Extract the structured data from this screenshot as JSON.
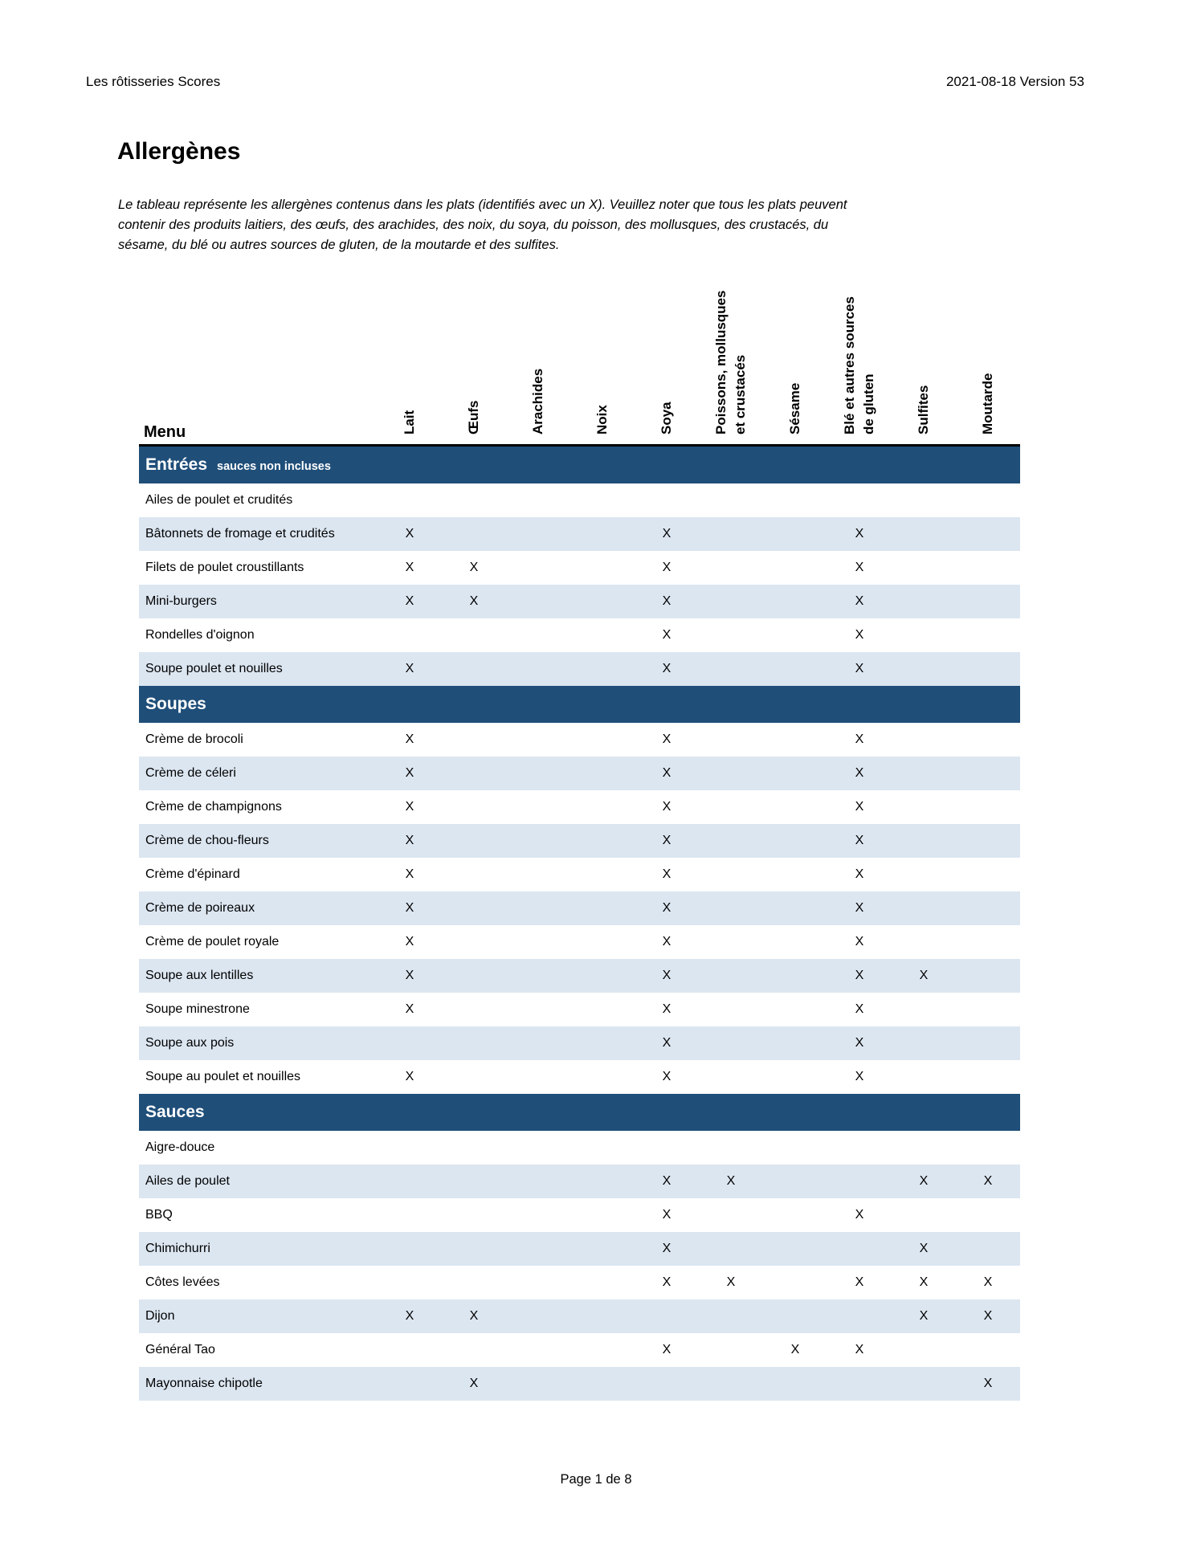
{
  "header": {
    "left": "Les rôtisseries Scores",
    "right": "2021-08-18 Version 53"
  },
  "title": "Allergènes",
  "intro_lines": [
    "Le tableau représente les allergènes contenus dans les plats (identifiés avec un X).  Veuillez noter que tous les plats peuvent",
    "contenir des produits laitiers, des œufs, des arachides, des noix, du soya, du poisson, des mollusques, des crustacés, du",
    "sésame, du blé ou autres sources de gluten, de la moutarde et des sulfites."
  ],
  "colors": {
    "section_band": "#1F4E79",
    "row_shaded": "#DCE6F1"
  },
  "table": {
    "menu_label": "Menu",
    "mark": "X",
    "columns": [
      {
        "lines": [
          "Lait"
        ]
      },
      {
        "lines": [
          "Œufs"
        ]
      },
      {
        "lines": [
          "Arachides"
        ]
      },
      {
        "lines": [
          "Noix"
        ]
      },
      {
        "lines": [
          "Soya"
        ]
      },
      {
        "lines": [
          "Poissons, mollusques",
          "et crustacés"
        ]
      },
      {
        "lines": [
          "Sésame"
        ]
      },
      {
        "lines": [
          "Blé et autres sources",
          "de gluten"
        ]
      },
      {
        "lines": [
          "Sulfites"
        ]
      },
      {
        "lines": [
          "Moutarde"
        ]
      }
    ],
    "sections": [
      {
        "title": "Entrées",
        "subtitle": "sauces non incluses",
        "rows": [
          {
            "label": "Ailes de poulet et crudités",
            "marks": []
          },
          {
            "label": "Bâtonnets de fromage et crudités",
            "marks": [
              0,
              4,
              7
            ]
          },
          {
            "label": "Filets de poulet croustillants",
            "marks": [
              0,
              1,
              4,
              7
            ]
          },
          {
            "label": "Mini-burgers",
            "marks": [
              0,
              1,
              4,
              7
            ]
          },
          {
            "label": "Rondelles d'oignon",
            "marks": [
              4,
              7
            ]
          },
          {
            "label": "Soupe poulet et nouilles",
            "marks": [
              0,
              4,
              7
            ]
          }
        ]
      },
      {
        "title": "Soupes",
        "subtitle": "",
        "rows": [
          {
            "label": "Crème de brocoli",
            "marks": [
              0,
              4,
              7
            ]
          },
          {
            "label": "Crème de céleri",
            "marks": [
              0,
              4,
              7
            ]
          },
          {
            "label": "Crème de champignons",
            "marks": [
              0,
              4,
              7
            ]
          },
          {
            "label": "Crème de chou-fleurs",
            "marks": [
              0,
              4,
              7
            ]
          },
          {
            "label": "Crème d'épinard",
            "marks": [
              0,
              4,
              7
            ]
          },
          {
            "label": "Crème de poireaux",
            "marks": [
              0,
              4,
              7
            ]
          },
          {
            "label": "Crème de poulet royale",
            "marks": [
              0,
              4,
              7
            ]
          },
          {
            "label": "Soupe aux lentilles",
            "marks": [
              0,
              4,
              7,
              8
            ]
          },
          {
            "label": "Soupe minestrone",
            "marks": [
              0,
              4,
              7
            ]
          },
          {
            "label": "Soupe aux pois",
            "marks": [
              4,
              7
            ]
          },
          {
            "label": "Soupe au poulet et nouilles",
            "marks": [
              0,
              4,
              7
            ]
          }
        ]
      },
      {
        "title": "Sauces",
        "subtitle": "",
        "rows": [
          {
            "label": "Aigre-douce",
            "marks": []
          },
          {
            "label": "Ailes de poulet",
            "marks": [
              4,
              5,
              8,
              9
            ]
          },
          {
            "label": "BBQ",
            "marks": [
              4,
              7
            ]
          },
          {
            "label": "Chimichurri",
            "marks": [
              4,
              8
            ]
          },
          {
            "label": "Côtes levées",
            "marks": [
              4,
              5,
              7,
              8,
              9
            ]
          },
          {
            "label": "Dijon",
            "marks": [
              0,
              1,
              8,
              9
            ]
          },
          {
            "label": "Général Tao",
            "marks": [
              4,
              6,
              7
            ]
          },
          {
            "label": "Mayonnaise chipotle",
            "marks": [
              1,
              9
            ]
          }
        ]
      }
    ]
  },
  "footer": "Page 1 de 8"
}
